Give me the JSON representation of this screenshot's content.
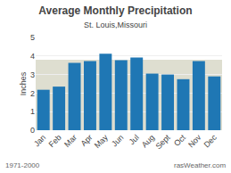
{
  "chart_data": {
    "type": "bar",
    "title": "Average Monthly Precipitation",
    "subtitle": "St. Louis,Missouri",
    "y_label": "Inches",
    "annotations": [
      "1971-2000",
      "rasWeather.com"
    ],
    "categories": [
      "Jan",
      "Feb",
      "Mar",
      "Apr",
      "May",
      "Jun",
      "Jul",
      "Aug",
      "Sept",
      "Oct",
      "Nov",
      "Dec"
    ],
    "values": [
      2.18,
      2.35,
      3.63,
      3.72,
      4.12,
      3.77,
      3.92,
      3.05,
      3.0,
      2.75,
      3.73,
      2.9
    ],
    "ylim": [
      0.0,
      5.0
    ],
    "yticks": [
      0,
      1,
      2,
      3,
      4,
      5
    ],
    "shade": {
      "range": [
        0.0,
        3.8
      ],
      "color": "#deded0"
    },
    "grid": true
  }
}
